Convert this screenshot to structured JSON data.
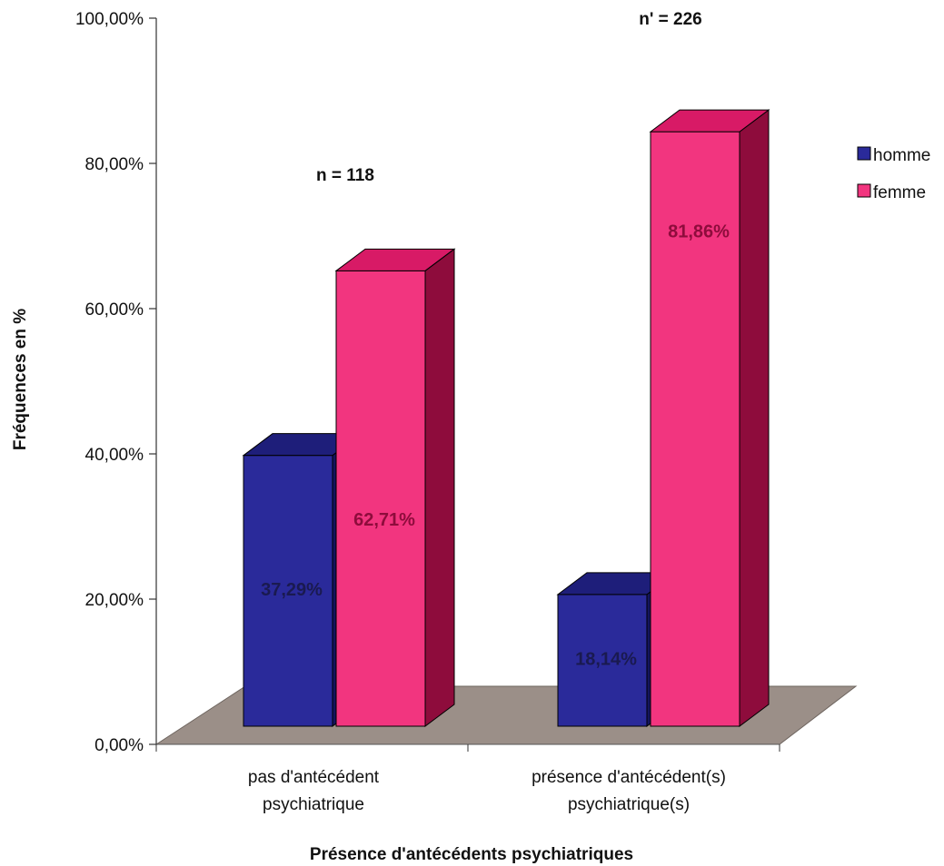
{
  "chart_data": {
    "type": "bar",
    "title": "",
    "xlabel": "Présence d'antécédents psychiatriques",
    "ylabel": "Fréquences en %",
    "ylim": [
      0,
      100
    ],
    "yticks": [
      "0,00%",
      "20,00%",
      "40,00%",
      "60,00%",
      "80,00%",
      "100,00%"
    ],
    "categories": [
      [
        "pas d'antécédent",
        "psychiatrique"
      ],
      [
        "présence d'antécédent(s)",
        "psychiatrique(s)"
      ]
    ],
    "series": [
      {
        "name": "homme",
        "values": [
          37.29,
          18.14
        ],
        "labels": [
          "37,29%",
          "18,14%"
        ],
        "color": "#2a2a9a",
        "side_color": "#15155e",
        "top_color": "#1e1e7a"
      },
      {
        "name": "femme",
        "values": [
          62.71,
          81.86
        ],
        "labels": [
          "62,71%",
          "81,86%"
        ],
        "color": "#f2357f",
        "side_color": "#8e0c3c",
        "top_color": "#d81a66"
      }
    ],
    "annotations": [
      "n = 118",
      "n' = 226"
    ],
    "legend_position": "right",
    "grid": false,
    "floor_color": "#9b8f88"
  }
}
